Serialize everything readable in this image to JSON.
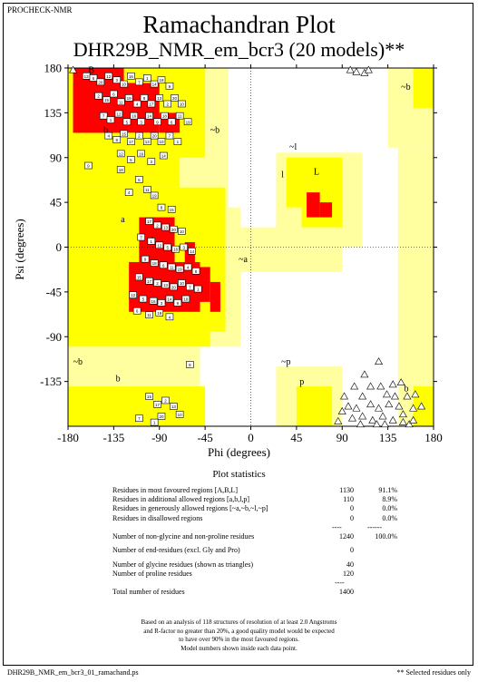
{
  "header": {
    "program": "PROCHECK-NMR"
  },
  "chart_data": {
    "type": "scatter",
    "title": "Ramachandran Plot",
    "subtitle": "DHR29B_NMR_em_bcr3 (20 models)**",
    "xlabel": "Phi (degrees)",
    "ylabel": "Psi (degrees)",
    "xlim": [
      -180,
      180
    ],
    "ylim": [
      -180,
      180
    ],
    "x_ticks": [
      "-180",
      "-135",
      "-90",
      "-45",
      "0",
      "45",
      "90",
      "135",
      "180"
    ],
    "y_ticks": [
      "180",
      "135",
      "90",
      "45",
      "0",
      "-45",
      "-90",
      "-135"
    ],
    "region_labels": [
      "A",
      "B",
      "L",
      "a",
      "b",
      "l",
      "p",
      "~a",
      "~b",
      "~l",
      "~p",
      "b",
      "~b",
      "~b",
      "b"
    ],
    "region_colors": {
      "most_favoured": "#ff0000",
      "additional": "#ffff00",
      "generous": "#ffffa0",
      "disallowed": "#ffffff"
    },
    "series": [
      {
        "name": "non-glycine residues (model numbers)",
        "points": [
          [
            -162,
            172,
            "13"
          ],
          [
            -155,
            170,
            "5"
          ],
          [
            -148,
            166,
            "20"
          ],
          [
            -140,
            172,
            "12"
          ],
          [
            -132,
            168,
            "3"
          ],
          [
            -125,
            164,
            "10"
          ],
          [
            -118,
            172,
            "16"
          ],
          [
            -110,
            166,
            "7"
          ],
          [
            -102,
            170,
            "1"
          ],
          [
            -95,
            164,
            "14"
          ],
          [
            -88,
            168,
            "18"
          ],
          [
            -80,
            162,
            "9"
          ],
          [
            -150,
            152,
            "2"
          ],
          [
            -142,
            148,
            "15"
          ],
          [
            -135,
            154,
            "6"
          ],
          [
            -128,
            146,
            "11"
          ],
          [
            -120,
            150,
            "19"
          ],
          [
            -112,
            144,
            "4"
          ],
          [
            -105,
            150,
            "8"
          ],
          [
            -98,
            144,
            "17"
          ],
          [
            -90,
            150,
            "13"
          ],
          [
            -82,
            144,
            "2"
          ],
          [
            -75,
            150,
            "20"
          ],
          [
            -68,
            144,
            "10"
          ],
          [
            -145,
            132,
            "7"
          ],
          [
            -138,
            128,
            "1"
          ],
          [
            -130,
            134,
            "12"
          ],
          [
            -122,
            126,
            "5"
          ],
          [
            -115,
            132,
            "16"
          ],
          [
            -108,
            126,
            "3"
          ],
          [
            -100,
            132,
            "14"
          ],
          [
            -92,
            126,
            "9"
          ],
          [
            -85,
            132,
            "18"
          ],
          [
            -78,
            126,
            "6"
          ],
          [
            -70,
            132,
            "11"
          ],
          [
            -62,
            126,
            "19"
          ],
          [
            -140,
            112,
            "4"
          ],
          [
            -132,
            108,
            "8"
          ],
          [
            -125,
            114,
            "15"
          ],
          [
            -118,
            106,
            "17"
          ],
          [
            -110,
            112,
            "2"
          ],
          [
            -102,
            106,
            "13"
          ],
          [
            -95,
            112,
            "20"
          ],
          [
            -88,
            106,
            "10"
          ],
          [
            -80,
            112,
            "7"
          ],
          [
            -72,
            106,
            "1"
          ],
          [
            -128,
            94,
            "12"
          ],
          [
            -118,
            88,
            "5"
          ],
          [
            -108,
            94,
            "16"
          ],
          [
            -98,
            86,
            "3"
          ],
          [
            -86,
            92,
            "14"
          ],
          [
            -160,
            82,
            "9"
          ],
          [
            -128,
            78,
            "18"
          ],
          [
            -110,
            68,
            "6"
          ],
          [
            -102,
            58,
            "11"
          ],
          [
            -95,
            52,
            "19"
          ],
          [
            -120,
            55,
            "4"
          ],
          [
            -88,
            40,
            "8"
          ],
          [
            -78,
            38,
            "15"
          ],
          [
            -100,
            26,
            "17"
          ],
          [
            -92,
            22,
            "2"
          ],
          [
            -84,
            20,
            "13"
          ],
          [
            -76,
            18,
            "20"
          ],
          [
            -68,
            16,
            "10"
          ],
          [
            -108,
            10,
            "7"
          ],
          [
            -98,
            6,
            "1"
          ],
          [
            -90,
            2,
            "12"
          ],
          [
            -82,
            0,
            "5"
          ],
          [
            -74,
            -2,
            "16"
          ],
          [
            -66,
            0,
            "3"
          ],
          [
            -58,
            -4,
            "14"
          ],
          [
            -104,
            -12,
            "9"
          ],
          [
            -95,
            -16,
            "18"
          ],
          [
            -86,
            -18,
            "6"
          ],
          [
            -78,
            -20,
            "11"
          ],
          [
            -70,
            -22,
            "19"
          ],
          [
            -62,
            -20,
            "4"
          ],
          [
            -54,
            -24,
            "8"
          ],
          [
            -110,
            -30,
            "15"
          ],
          [
            -100,
            -34,
            "17"
          ],
          [
            -92,
            -36,
            "2"
          ],
          [
            -84,
            -38,
            "13"
          ],
          [
            -76,
            -40,
            "20"
          ],
          [
            -68,
            -36,
            "10"
          ],
          [
            -60,
            -40,
            "7"
          ],
          [
            -52,
            -42,
            "1"
          ],
          [
            -116,
            -48,
            "12"
          ],
          [
            -106,
            -52,
            "5"
          ],
          [
            -96,
            -54,
            "16"
          ],
          [
            -88,
            -56,
            "3"
          ],
          [
            -80,
            -52,
            "14"
          ],
          [
            -72,
            -56,
            "9"
          ],
          [
            -64,
            -52,
            "18"
          ],
          [
            -112,
            -64,
            "6"
          ],
          [
            -100,
            -68,
            "11"
          ],
          [
            -90,
            -66,
            "19"
          ],
          [
            -80,
            -70,
            "4"
          ],
          [
            -60,
            -118,
            "8"
          ],
          [
            -100,
            -150,
            "15"
          ],
          [
            -92,
            -158,
            "17"
          ],
          [
            -84,
            -154,
            "2"
          ],
          [
            -76,
            -160,
            "13"
          ],
          [
            -88,
            -170,
            "20"
          ],
          [
            -70,
            -168,
            "10"
          ],
          [
            -110,
            -172,
            "7"
          ],
          [
            -95,
            -176,
            "1"
          ]
        ]
      },
      {
        "name": "glycine residues (shown as triangles)",
        "points": [
          [
            -175,
            178
          ],
          [
            98,
            178
          ],
          [
            104,
            176
          ],
          [
            112,
            175
          ],
          [
            116,
            178
          ],
          [
            126,
            -115
          ],
          [
            112,
            -128
          ],
          [
            118,
            -140
          ],
          [
            102,
            -140
          ],
          [
            128,
            -140
          ],
          [
            92,
            -150
          ],
          [
            110,
            -150
          ],
          [
            134,
            -148
          ],
          [
            140,
            -138
          ],
          [
            148,
            -136
          ],
          [
            96,
            -160
          ],
          [
            104,
            -162
          ],
          [
            118,
            -158
          ],
          [
            126,
            -162
          ],
          [
            136,
            -158
          ],
          [
            146,
            -160
          ],
          [
            150,
            -168
          ],
          [
            160,
            -162
          ],
          [
            168,
            -160
          ],
          [
            100,
            -172
          ],
          [
            110,
            -170
          ],
          [
            120,
            -174
          ],
          [
            130,
            -170
          ],
          [
            140,
            -174
          ],
          [
            150,
            -176
          ],
          [
            156,
            -178
          ],
          [
            90,
            -165
          ],
          [
            86,
            -175
          ],
          [
            142,
            -150
          ],
          [
            154,
            -150
          ],
          [
            162,
            -148
          ],
          [
            160,
            -174
          ],
          [
            132,
            -178
          ],
          [
            108,
            -178
          ],
          [
            124,
            -178
          ]
        ]
      }
    ]
  },
  "statistics": {
    "title": "Plot statistics",
    "rows": [
      {
        "label": "Residues in most favoured regions  [A,B,L]",
        "count": "1130",
        "percent": "91.1%"
      },
      {
        "label": "Residues in additional allowed regions  [a,b,l,p]",
        "count": "110",
        "percent": "8.9%"
      },
      {
        "label": "Residues in generously allowed regions  [~a,~b,~l,~p]",
        "count": "0",
        "percent": "0.0%"
      },
      {
        "label": "Residues in disallowed regions",
        "count": "0",
        "percent": "0.0%"
      },
      {
        "label": "Number of non-glycine and non-proline residues",
        "count": "1240",
        "percent": "100.0%"
      },
      {
        "label": "Number of end-residues (excl. Gly and Pro)",
        "count": "0",
        "percent": ""
      },
      {
        "label": "Number of glycine residues (shown as triangles)",
        "count": "40",
        "percent": ""
      },
      {
        "label": "Number of proline residues",
        "count": "120",
        "percent": ""
      },
      {
        "label": "Total number of residues",
        "count": "1400",
        "percent": ""
      }
    ],
    "separator_count": "----",
    "separator_percent": "------",
    "separator_total": "----"
  },
  "footnote": {
    "lines": [
      "Based on an analysis of 118 structures of resolution of at least 2.0 Angstroms",
      "and R-factor no greater than 20%, a good quality model would be expected",
      "to have over 90% in the most favoured regions.",
      "Model numbers shown inside each data point."
    ]
  },
  "footer": {
    "file_name": "DHR29B_NMR_em_bcr3_01_ramachand.ps",
    "selected_note": "** Selected residues only"
  }
}
